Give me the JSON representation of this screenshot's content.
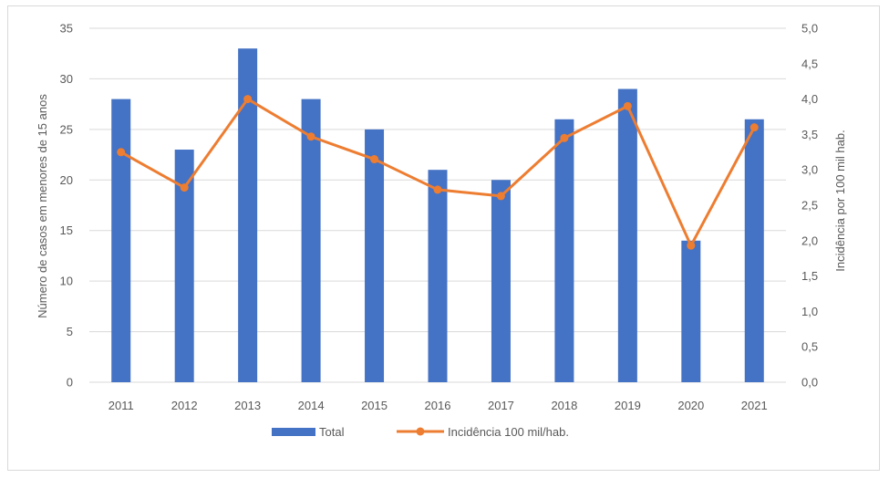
{
  "chart_data": {
    "type": "bar",
    "categories": [
      "2011",
      "2012",
      "2013",
      "2014",
      "2015",
      "2016",
      "2017",
      "2018",
      "2019",
      "2020",
      "2021"
    ],
    "series": [
      {
        "name": "Total",
        "type": "bar",
        "axis": "left",
        "color": "#4472c4",
        "values": [
          28,
          23,
          33,
          28,
          25,
          21,
          20,
          26,
          29,
          14,
          26
        ]
      },
      {
        "name": "Incidência 100 mil/hab.",
        "type": "line",
        "axis": "right",
        "color": "#ed7d31",
        "values": [
          3.25,
          2.75,
          4.0,
          3.47,
          3.15,
          2.72,
          2.63,
          3.45,
          3.9,
          1.93,
          3.6
        ]
      }
    ],
    "ylabel": "Número de casos em menores de 15 anos",
    "y2label": "Incidência por 100 mil hab.",
    "ylim": [
      0,
      35
    ],
    "y2lim": [
      0,
      5
    ],
    "yticks": [
      "0",
      "5",
      "10",
      "15",
      "20",
      "25",
      "30",
      "35"
    ],
    "y2ticks": [
      "0,0",
      "0,5",
      "1,0",
      "1,5",
      "2,0",
      "2,5",
      "3,0",
      "3,5",
      "4,0",
      "4,5",
      "5,0"
    ],
    "grid": true,
    "legend_position": "bottom"
  }
}
